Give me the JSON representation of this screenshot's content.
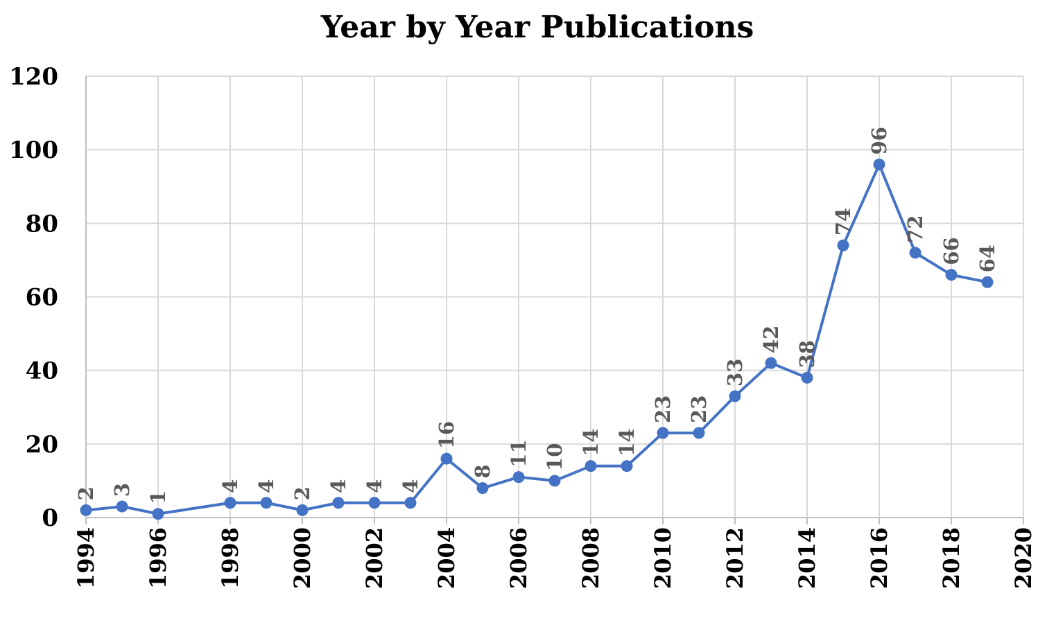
{
  "chart_data": {
    "type": "line",
    "title": "Year by Year Publications",
    "xlabel": "",
    "ylabel": "",
    "xlim": [
      1994,
      2020
    ],
    "ylim": [
      0,
      120
    ],
    "x_ticks": [
      "1994",
      "1996",
      "1998",
      "2000",
      "2002",
      "2004",
      "2006",
      "2008",
      "2010",
      "2012",
      "2014",
      "2016",
      "2018",
      "2020"
    ],
    "y_ticks": [
      "0",
      "20",
      "40",
      "60",
      "80",
      "100",
      "120"
    ],
    "grid": true,
    "legend": "none",
    "series": [
      {
        "color": "#4472c4",
        "points": [
          {
            "x": 1994,
            "y": 2
          },
          {
            "x": 1995,
            "y": 3
          },
          {
            "x": 1996,
            "y": 1
          },
          {
            "x": 1998,
            "y": 4
          },
          {
            "x": 1999,
            "y": 4
          },
          {
            "x": 2000,
            "y": 2
          },
          {
            "x": 2001,
            "y": 4
          },
          {
            "x": 2002,
            "y": 4
          },
          {
            "x": 2003,
            "y": 4
          },
          {
            "x": 2004,
            "y": 16
          },
          {
            "x": 2005,
            "y": 8
          },
          {
            "x": 2006,
            "y": 11
          },
          {
            "x": 2007,
            "y": 10
          },
          {
            "x": 2008,
            "y": 14
          },
          {
            "x": 2009,
            "y": 14
          },
          {
            "x": 2010,
            "y": 23
          },
          {
            "x": 2011,
            "y": 23
          },
          {
            "x": 2012,
            "y": 33
          },
          {
            "x": 2013,
            "y": 42
          },
          {
            "x": 2014,
            "y": 38
          },
          {
            "x": 2015,
            "y": 74
          },
          {
            "x": 2016,
            "y": 96
          },
          {
            "x": 2017,
            "y": 72
          },
          {
            "x": 2018,
            "y": 66
          },
          {
            "x": 2019,
            "y": 64
          }
        ]
      }
    ]
  }
}
